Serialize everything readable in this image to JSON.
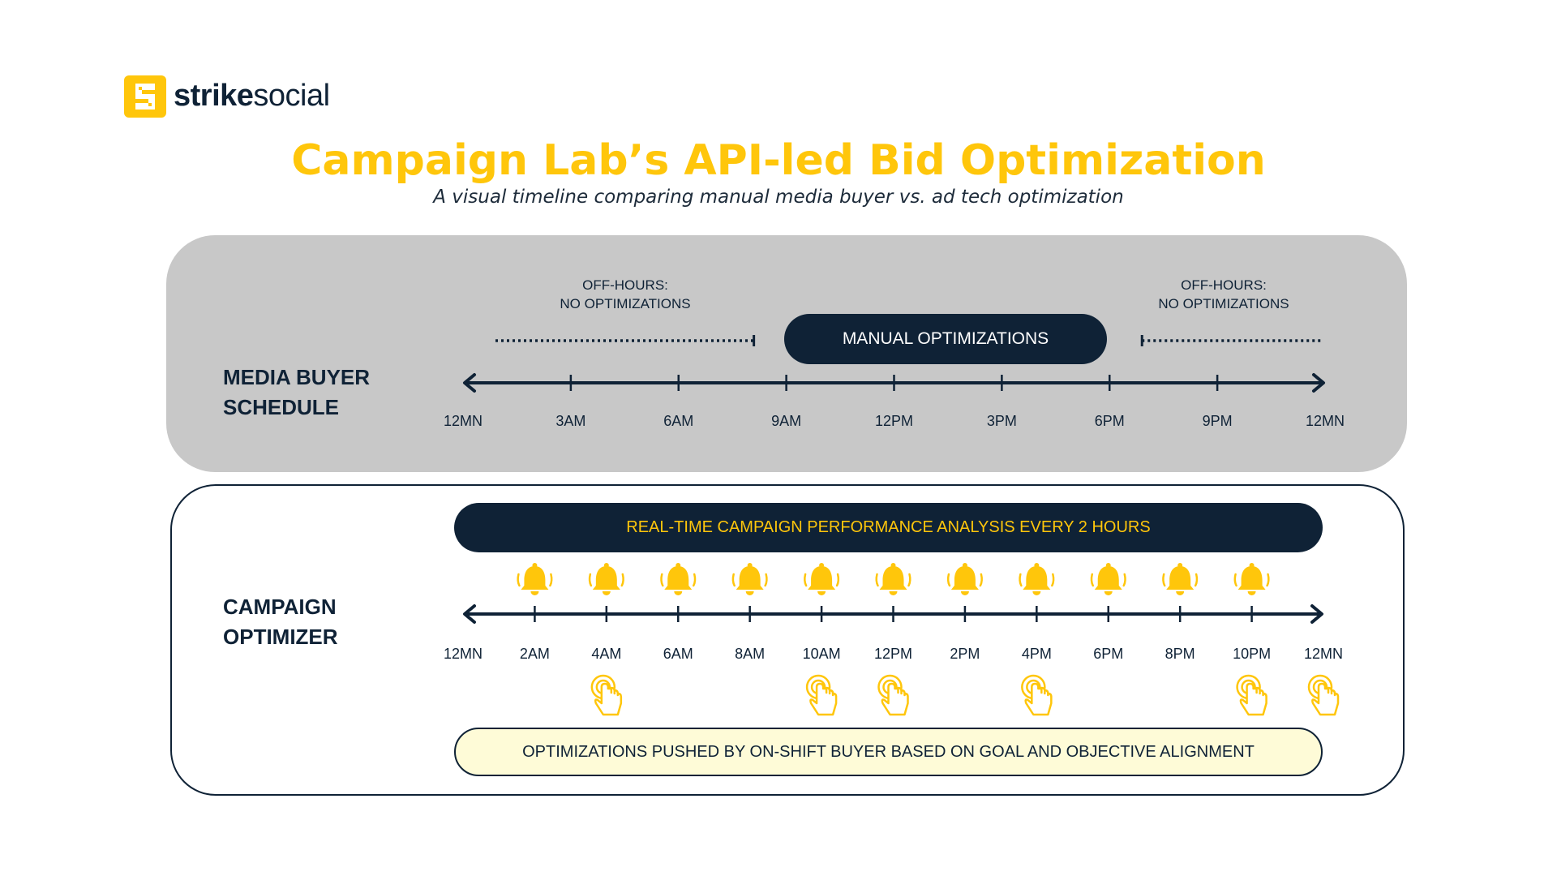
{
  "brand": {
    "name_bold": "strike",
    "name_light": "social",
    "mark_color": "#ffc60b"
  },
  "title": "Campaign Lab’s API-led Bid Optimization",
  "subtitle": "A visual timeline comparing manual media buyer vs. ad tech optimization",
  "colors": {
    "accent": "#ffc60b",
    "navy": "#0f2236",
    "panel_gray": "#c8c8c8",
    "pill_cream": "#fefbd7"
  },
  "media_buyer": {
    "label_line1": "MEDIA BUYER",
    "label_line2": "SCHEDULE",
    "off_hours_left": {
      "line1": "OFF-HOURS:",
      "line2": "NO OPTIMIZATIONS"
    },
    "off_hours_right": {
      "line1": "OFF-HOURS:",
      "line2": "NO OPTIMIZATIONS"
    },
    "manual_label": "MANUAL OPTIMIZATIONS",
    "ticks": [
      "12MN",
      "3AM",
      "6AM",
      "9AM",
      "12PM",
      "3PM",
      "6PM",
      "9PM",
      "12MN"
    ]
  },
  "campaign_optimizer": {
    "label_line1": "CAMPAIGN",
    "label_line2": "OPTIMIZER",
    "realtime_label": "REAL-TIME CAMPAIGN PERFORMANCE ANALYSIS EVERY 2 HOURS",
    "pushed_label": "OPTIMIZATIONS PUSHED BY ON-SHIFT BUYER BASED ON GOAL AND OBJECTIVE ALIGNMENT",
    "ticks": [
      "12MN",
      "2AM",
      "4AM",
      "6AM",
      "8AM",
      "10AM",
      "12PM",
      "2PM",
      "4PM",
      "6PM",
      "8PM",
      "10PM",
      "12MN"
    ],
    "bell_icon": "bell-icon",
    "tap_icon": "hand-tap-icon",
    "bells_at_hours": [
      2,
      4,
      6,
      8,
      10,
      12,
      14,
      16,
      18,
      20,
      22
    ],
    "taps_at_hours": [
      4,
      10,
      12,
      16,
      22,
      24
    ]
  }
}
